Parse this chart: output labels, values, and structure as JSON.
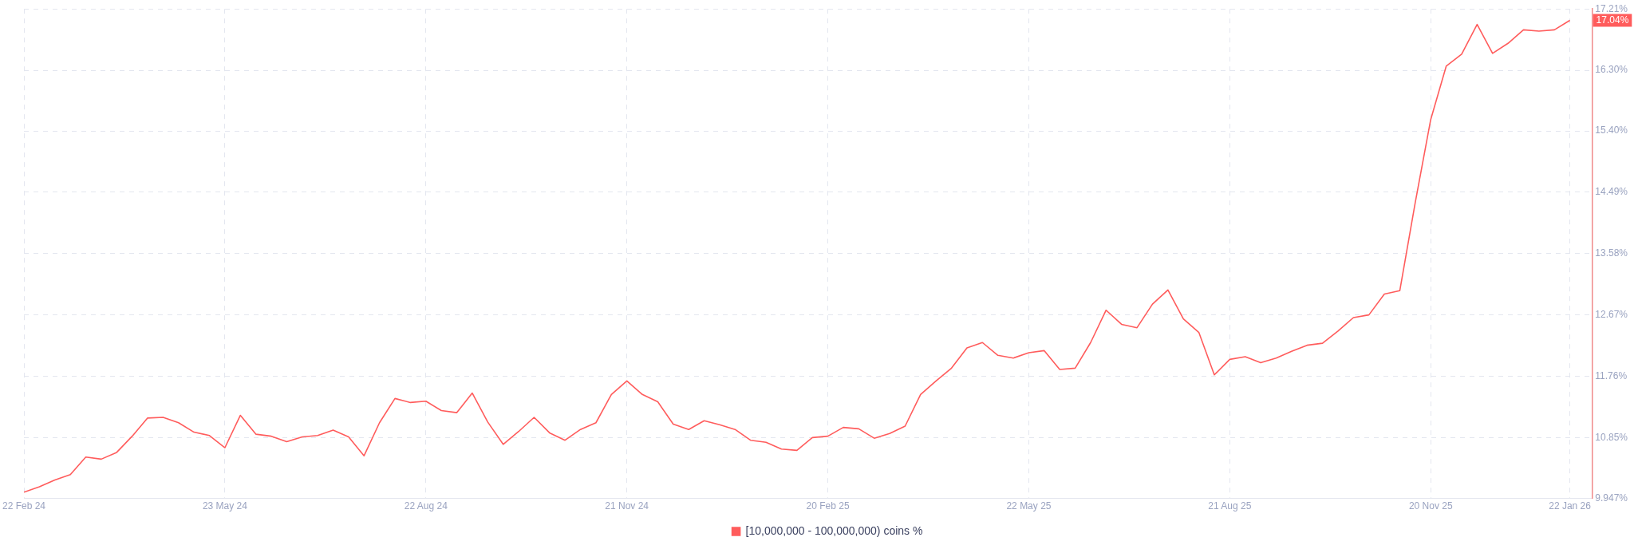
{
  "chart_data": {
    "type": "line",
    "x": [
      "2024-02-22",
      "2024-02-29",
      "2024-03-07",
      "2024-03-14",
      "2024-03-21",
      "2024-03-28",
      "2024-04-04",
      "2024-04-11",
      "2024-04-18",
      "2024-04-25",
      "2024-05-02",
      "2024-05-09",
      "2024-05-16",
      "2024-05-23",
      "2024-05-30",
      "2024-06-06",
      "2024-06-13",
      "2024-06-20",
      "2024-06-27",
      "2024-07-04",
      "2024-07-11",
      "2024-07-18",
      "2024-07-25",
      "2024-08-01",
      "2024-08-08",
      "2024-08-15",
      "2024-08-22",
      "2024-08-29",
      "2024-09-05",
      "2024-09-12",
      "2024-09-19",
      "2024-09-26",
      "2024-10-03",
      "2024-10-10",
      "2024-10-17",
      "2024-10-24",
      "2024-10-31",
      "2024-11-07",
      "2024-11-14",
      "2024-11-21",
      "2024-11-28",
      "2024-12-05",
      "2024-12-12",
      "2024-12-19",
      "2024-12-26",
      "2025-01-02",
      "2025-01-09",
      "2025-01-16",
      "2025-01-23",
      "2025-01-30",
      "2025-02-06",
      "2025-02-13",
      "2025-02-20",
      "2025-02-27",
      "2025-03-06",
      "2025-03-13",
      "2025-03-20",
      "2025-03-27",
      "2025-04-03",
      "2025-04-10",
      "2025-04-17",
      "2025-04-24",
      "2025-05-01",
      "2025-05-08",
      "2025-05-15",
      "2025-05-22",
      "2025-05-29",
      "2025-06-05",
      "2025-06-12",
      "2025-06-19",
      "2025-06-26",
      "2025-07-03",
      "2025-07-10",
      "2025-07-17",
      "2025-07-24",
      "2025-07-31",
      "2025-08-07",
      "2025-08-14",
      "2025-08-21",
      "2025-08-28",
      "2025-09-04",
      "2025-09-11",
      "2025-09-18",
      "2025-09-25",
      "2025-10-02",
      "2025-10-09",
      "2025-10-16",
      "2025-10-23",
      "2025-10-30",
      "2025-11-06",
      "2025-11-13",
      "2025-11-20",
      "2025-11-27",
      "2025-12-04",
      "2025-12-11",
      "2025-12-18",
      "2025-12-25",
      "2026-01-01",
      "2026-01-08",
      "2026-01-15",
      "2026-01-22"
    ],
    "series": [
      {
        "name": "[10,000,000 - 100,000,000) coins %",
        "color": "#ff5c5c",
        "values": [
          10.04,
          10.12,
          10.22,
          10.3,
          10.56,
          10.53,
          10.63,
          10.87,
          11.14,
          11.15,
          11.07,
          10.93,
          10.88,
          10.7,
          11.18,
          10.9,
          10.87,
          10.79,
          10.86,
          10.88,
          10.96,
          10.86,
          10.58,
          11.07,
          11.43,
          11.37,
          11.39,
          11.25,
          11.22,
          11.51,
          11.08,
          10.75,
          10.94,
          11.15,
          10.92,
          10.81,
          10.97,
          11.07,
          11.49,
          11.69,
          11.49,
          11.38,
          11.05,
          10.97,
          11.1,
          11.04,
          10.97,
          10.81,
          10.78,
          10.68,
          10.66,
          10.85,
          10.87,
          11.0,
          10.98,
          10.84,
          10.91,
          11.02,
          11.49,
          11.69,
          11.88,
          12.18,
          12.26,
          12.07,
          12.03,
          12.11,
          12.14,
          11.86,
          11.88,
          12.26,
          12.74,
          12.53,
          12.48,
          12.83,
          13.04,
          12.61,
          12.41,
          11.78,
          12.01,
          12.05,
          11.96,
          12.03,
          12.13,
          12.22,
          12.25,
          12.43,
          12.63,
          12.67,
          12.98,
          13.03,
          14.34,
          15.57,
          16.36,
          16.54,
          16.98,
          16.55,
          16.7,
          16.9,
          16.88,
          16.9,
          17.04
        ]
      }
    ],
    "xlim": [
      "2024-02-22",
      "2026-02-01"
    ],
    "xticks": [
      {
        "value": "2024-02-22",
        "label": "22 Feb 24"
      },
      {
        "value": "2024-05-23",
        "label": "23 May 24"
      },
      {
        "value": "2024-08-22",
        "label": "22 Aug 24"
      },
      {
        "value": "2024-11-21",
        "label": "21 Nov 24"
      },
      {
        "value": "2025-02-20",
        "label": "20 Feb 25"
      },
      {
        "value": "2025-05-22",
        "label": "22 May 25"
      },
      {
        "value": "2025-08-21",
        "label": "21 Aug 25"
      },
      {
        "value": "2025-11-20",
        "label": "20 Nov 25"
      },
      {
        "value": "2026-01-22",
        "label": "22 Jan 26"
      }
    ],
    "ylim": [
      9.947,
      17.21
    ],
    "yticks": [
      {
        "value": 9.947,
        "label": "9.947%"
      },
      {
        "value": 10.85,
        "label": "10.85%"
      },
      {
        "value": 11.76,
        "label": "11.76%"
      },
      {
        "value": 12.67,
        "label": "12.67%"
      },
      {
        "value": 13.58,
        "label": "13.58%"
      },
      {
        "value": 14.49,
        "label": "14.49%"
      },
      {
        "value": 15.4,
        "label": "15.40%"
      },
      {
        "value": 16.3,
        "label": "16.30%"
      },
      {
        "value": 17.21,
        "label": "17.21%"
      }
    ],
    "annotations": [
      {
        "text": "17.04%",
        "x": "2026-01-22",
        "y": 17.04
      }
    ],
    "grid": true,
    "legend": "bottom",
    "marker": "none",
    "line_style": "solid"
  }
}
